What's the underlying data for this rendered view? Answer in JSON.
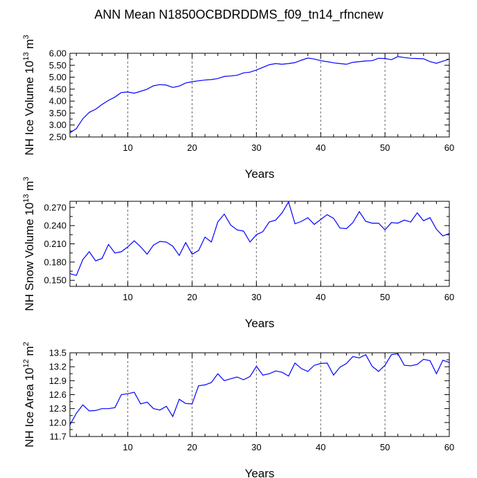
{
  "title": "ANN Mean N1850OCBDRDDMS_f09_tn14_rfncnew",
  "colors": {
    "line": "#0000ff",
    "frame": "#000000",
    "grid": "#666666"
  },
  "chart_data": [
    {
      "type": "line",
      "ylabel_prefix": "NH Ice Volume 10",
      "ylabel_exp": "13",
      "ylabel_unit": " m",
      "ylabel_unit_exp": "3",
      "xlabel": "Years",
      "xlim": [
        1,
        60
      ],
      "ylim": [
        2.5,
        6.0
      ],
      "yticks": [
        "2.50",
        "3.00",
        "3.50",
        "4.00",
        "4.50",
        "5.00",
        "5.50",
        "6.00"
      ],
      "xticks": [
        "10",
        "20",
        "30",
        "40",
        "50",
        "60"
      ],
      "grid_x_dashed": [
        10,
        20,
        30,
        40,
        50
      ],
      "x": [
        1,
        2,
        3,
        4,
        5,
        6,
        7,
        8,
        9,
        10,
        11,
        12,
        13,
        14,
        15,
        16,
        17,
        18,
        19,
        20,
        21,
        22,
        23,
        24,
        25,
        26,
        27,
        28,
        29,
        30,
        31,
        32,
        33,
        34,
        35,
        36,
        37,
        38,
        39,
        40,
        41,
        42,
        43,
        44,
        45,
        46,
        47,
        48,
        49,
        50,
        51,
        52,
        53,
        54,
        55,
        56,
        57,
        58,
        59,
        60
      ],
      "y": [
        2.67,
        2.85,
        3.26,
        3.53,
        3.66,
        3.86,
        4.03,
        4.17,
        4.36,
        4.38,
        4.33,
        4.41,
        4.5,
        4.64,
        4.69,
        4.67,
        4.57,
        4.63,
        4.76,
        4.81,
        4.85,
        4.88,
        4.9,
        4.94,
        5.03,
        5.05,
        5.08,
        5.18,
        5.21,
        5.3,
        5.41,
        5.52,
        5.57,
        5.54,
        5.57,
        5.61,
        5.71,
        5.8,
        5.76,
        5.69,
        5.65,
        5.6,
        5.57,
        5.54,
        5.62,
        5.65,
        5.68,
        5.69,
        5.79,
        5.78,
        5.73,
        5.86,
        5.82,
        5.79,
        5.78,
        5.77,
        5.65,
        5.58,
        5.67,
        5.75
      ]
    },
    {
      "type": "line",
      "ylabel_prefix": "NH Snow Volume 10",
      "ylabel_exp": "13",
      "ylabel_unit": " m",
      "ylabel_unit_exp": "3",
      "xlabel": "Years",
      "xlim": [
        1,
        60
      ],
      "ylim": [
        0.14,
        0.28
      ],
      "yticks": [
        "0.150",
        "0.180",
        "0.210",
        "0.240",
        "0.270"
      ],
      "xticks": [
        "10",
        "20",
        "30",
        "40",
        "50",
        "60"
      ],
      "grid_x_dashed": [
        10,
        20,
        30,
        40,
        50
      ],
      "x": [
        1,
        2,
        3,
        4,
        5,
        6,
        7,
        8,
        9,
        10,
        11,
        12,
        13,
        14,
        15,
        16,
        17,
        18,
        19,
        20,
        21,
        22,
        23,
        24,
        25,
        26,
        27,
        28,
        29,
        30,
        31,
        32,
        33,
        34,
        35,
        36,
        37,
        38,
        39,
        40,
        41,
        42,
        43,
        44,
        45,
        46,
        47,
        48,
        49,
        50,
        51,
        52,
        53,
        54,
        55,
        56,
        57,
        58,
        59,
        60
      ],
      "y": [
        0.161,
        0.158,
        0.184,
        0.197,
        0.182,
        0.186,
        0.209,
        0.195,
        0.197,
        0.205,
        0.215,
        0.205,
        0.193,
        0.208,
        0.214,
        0.213,
        0.206,
        0.191,
        0.212,
        0.193,
        0.199,
        0.221,
        0.213,
        0.246,
        0.259,
        0.241,
        0.233,
        0.231,
        0.213,
        0.225,
        0.23,
        0.246,
        0.249,
        0.261,
        0.279,
        0.243,
        0.247,
        0.253,
        0.242,
        0.25,
        0.258,
        0.252,
        0.236,
        0.235,
        0.245,
        0.263,
        0.247,
        0.244,
        0.244,
        0.233,
        0.245,
        0.244,
        0.249,
        0.246,
        0.261,
        0.248,
        0.253,
        0.234,
        0.223,
        0.227
      ]
    },
    {
      "type": "line",
      "ylabel_prefix": "NH Ice Area 10",
      "ylabel_exp": "12",
      "ylabel_unit": " m",
      "ylabel_unit_exp": "2",
      "xlabel": "Years",
      "xlim": [
        1,
        60
      ],
      "ylim": [
        11.7,
        13.5
      ],
      "yticks": [
        "11.7",
        "12.0",
        "12.3",
        "12.6",
        "12.9",
        "13.2",
        "13.5"
      ],
      "xticks": [
        "10",
        "20",
        "30",
        "40",
        "50",
        "60"
      ],
      "grid_x_dashed": [
        10,
        20,
        30,
        40,
        50
      ],
      "x": [
        1,
        2,
        3,
        4,
        5,
        6,
        7,
        8,
        9,
        10,
        11,
        12,
        13,
        14,
        15,
        16,
        17,
        18,
        19,
        20,
        21,
        22,
        23,
        24,
        25,
        26,
        27,
        28,
        29,
        30,
        31,
        32,
        33,
        34,
        35,
        36,
        37,
        38,
        39,
        40,
        41,
        42,
        43,
        44,
        45,
        46,
        47,
        48,
        49,
        50,
        51,
        52,
        53,
        54,
        55,
        56,
        57,
        58,
        59,
        60
      ],
      "y": [
        11.95,
        12.2,
        12.38,
        12.25,
        12.26,
        12.3,
        12.3,
        12.32,
        12.6,
        12.62,
        12.65,
        12.4,
        12.44,
        12.3,
        12.27,
        12.35,
        12.13,
        12.5,
        12.41,
        12.4,
        12.79,
        12.81,
        12.86,
        13.05,
        12.9,
        12.94,
        12.98,
        12.92,
        12.99,
        13.21,
        13.02,
        13.05,
        13.11,
        13.08,
        13.0,
        13.28,
        13.16,
        13.1,
        13.23,
        13.27,
        13.28,
        13.02,
        13.19,
        13.27,
        13.42,
        13.39,
        13.46,
        13.21,
        13.1,
        13.23,
        13.46,
        13.48,
        13.23,
        13.22,
        13.25,
        13.36,
        13.33,
        13.05,
        13.34,
        13.29
      ]
    }
  ]
}
